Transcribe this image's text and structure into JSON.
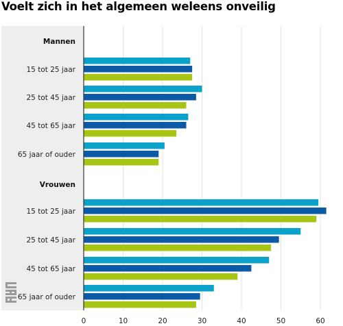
{
  "chart_data": {
    "type": "bar",
    "orientation": "horizontal",
    "title": "Voelt zich in het algemeen weleens onveilig",
    "xlim": [
      0,
      62
    ],
    "xticks": [
      0,
      10,
      20,
      30,
      40,
      50,
      60
    ],
    "grid": true,
    "colors": [
      "#0aa2c9",
      "#0b5aa5",
      "#a6c515"
    ],
    "groups": [
      {
        "name": "Mannen",
        "categories": [
          "15 tot 25 jaar",
          "25 tot 45 jaar",
          "45 tot 65 jaar",
          "65 jaar of ouder"
        ],
        "series": [
          {
            "values": [
              27,
              30,
              26.5,
              20.5
            ]
          },
          {
            "values": [
              27.5,
              28.5,
              26,
              19
            ]
          },
          {
            "values": [
              27.5,
              26,
              23.5,
              19
            ]
          }
        ]
      },
      {
        "name": "Vrouwen",
        "categories": [
          "15 tot 25 jaar",
          "25 tot 45 jaar",
          "45 tot 65 jaar",
          "65 jaar of ouder"
        ],
        "series": [
          {
            "values": [
              59.5,
              55,
              47,
              33
            ]
          },
          {
            "values": [
              61.5,
              49.5,
              42.5,
              29.5
            ]
          },
          {
            "values": [
              59,
              47.5,
              39,
              28.5
            ]
          }
        ]
      }
    ]
  }
}
